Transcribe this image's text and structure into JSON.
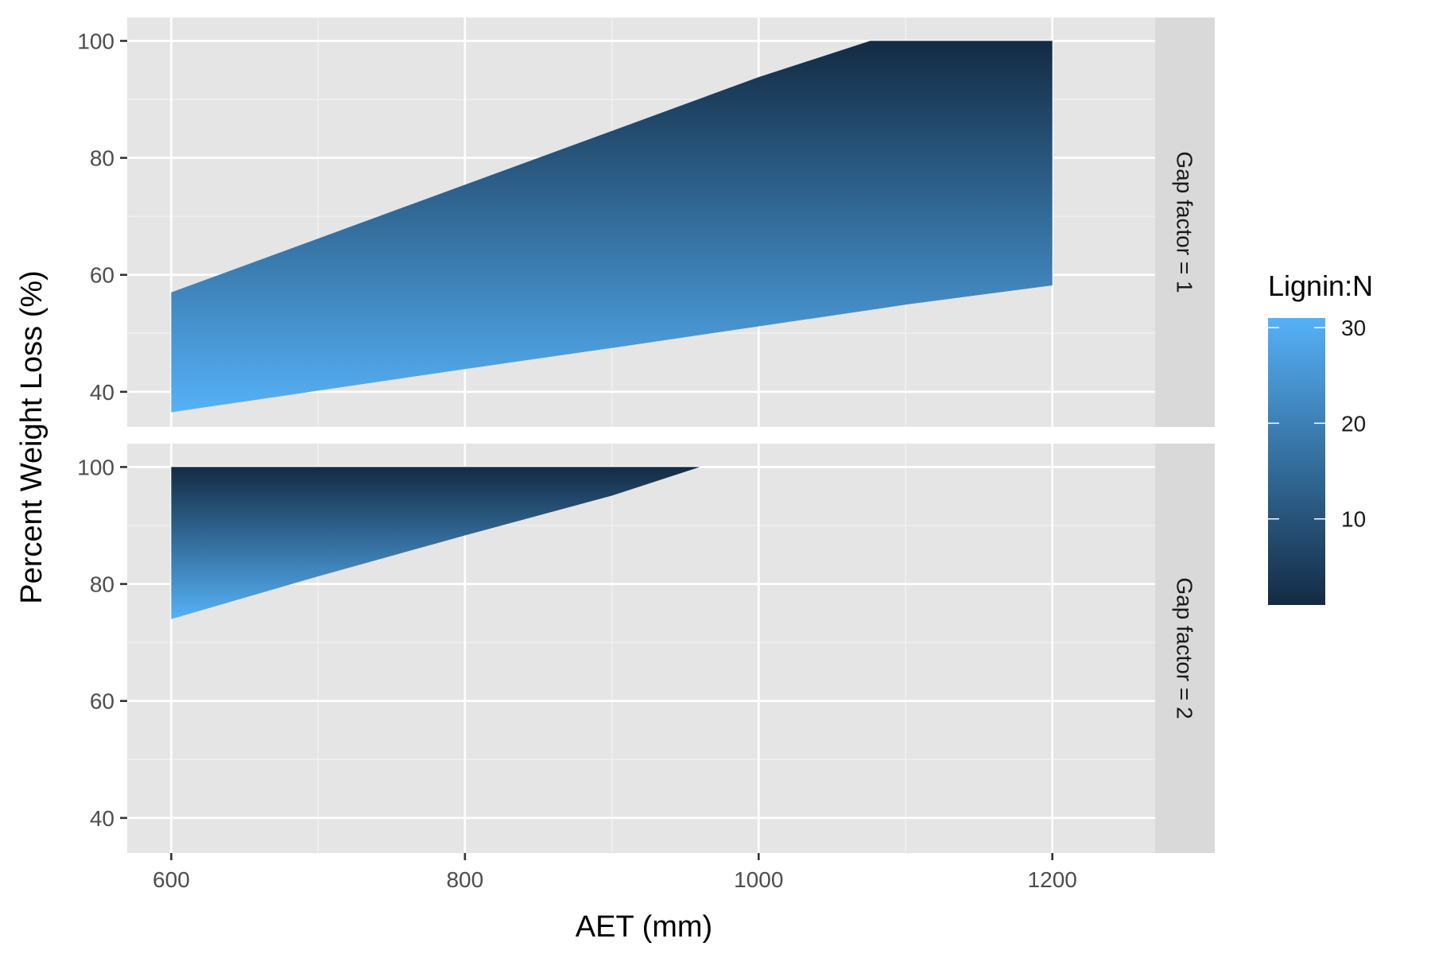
{
  "chart_data": {
    "type": "area",
    "xlabel": "AET (mm)",
    "ylabel": "Percent Weight Loss (%)",
    "xlim": [
      570,
      1270
    ],
    "ylim": [
      34,
      104
    ],
    "x_ticks": [
      600,
      800,
      1000,
      1200
    ],
    "y_ticks": [
      40,
      60,
      80,
      100
    ],
    "grid": true,
    "legend": {
      "title": "Lignin:N",
      "placement": "right",
      "ticks": [
        10,
        20,
        30
      ],
      "range": [
        1,
        31
      ],
      "low_color": "#132b43",
      "high_color": "#56b1f7"
    },
    "facets": [
      {
        "label": "Gap factor = 1",
        "x": [
          600,
          700,
          800,
          900,
          1000,
          1076,
          1100,
          1200
        ],
        "lignin_n_1": [
          57,
          66.2,
          75.4,
          84.6,
          93.8,
          100,
          100,
          100
        ],
        "lignin_n_31": [
          36.5,
          40.2,
          43.9,
          47.5,
          51.2,
          54,
          54.9,
          58.2
        ]
      },
      {
        "label": "Gap factor = 2",
        "x": [
          600,
          700,
          800,
          900,
          960,
          1000,
          1200
        ],
        "lignin_n_1": [
          100,
          100,
          100,
          100,
          100,
          100,
          100
        ],
        "lignin_n_31": [
          74,
          81.3,
          88.3,
          95.1,
          100,
          100,
          100
        ]
      }
    ]
  }
}
